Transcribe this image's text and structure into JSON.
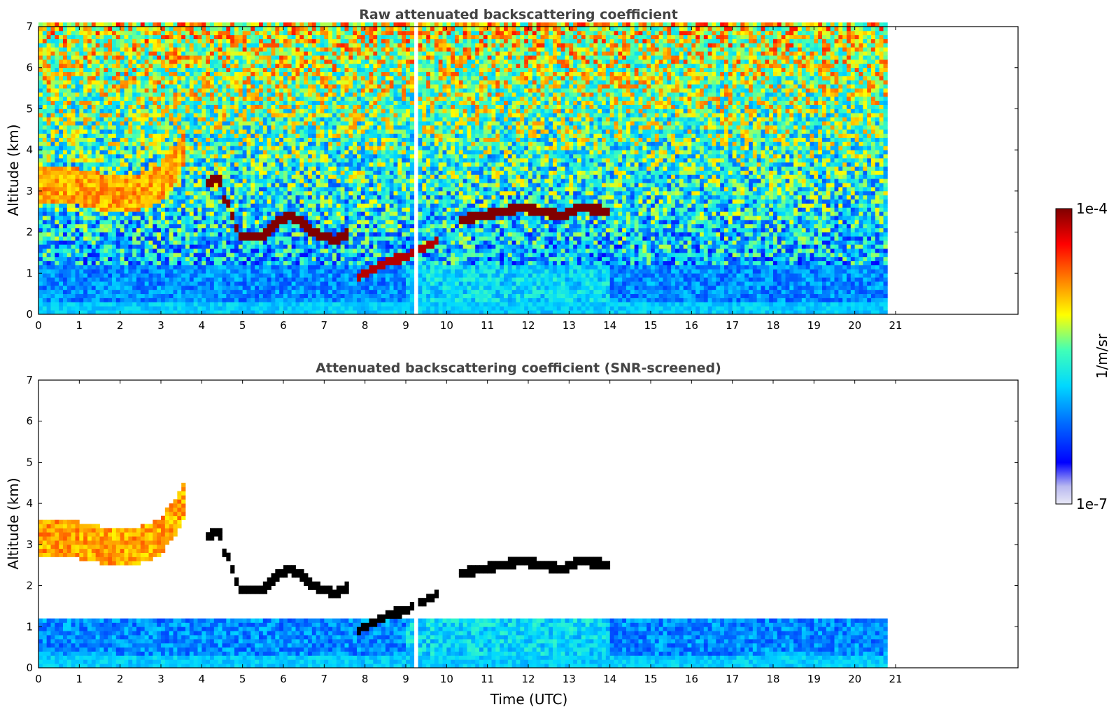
{
  "chart_data": [
    {
      "type": "heatmap",
      "title": "Raw attenuated backscattering coefficient",
      "xlabel": "",
      "ylabel": "Altitude (km)",
      "xlim": [
        0,
        24
      ],
      "ylim": [
        0,
        7
      ],
      "x_ticks": [
        "0",
        "1",
        "2",
        "3",
        "4",
        "5",
        "6",
        "7",
        "8",
        "9",
        "10",
        "11",
        "12",
        "13",
        "14",
        "15",
        "16",
        "17",
        "18",
        "19",
        "20",
        "21"
      ],
      "y_ticks": [
        "0",
        "1",
        "2",
        "3",
        "4",
        "5",
        "6",
        "7"
      ],
      "data_end_x": 20.8,
      "gap_x": [
        9.1,
        9.25
      ],
      "features": [
        {
          "kind": "layer",
          "x": [
            0,
            0.5,
            1,
            1.5,
            2,
            2.5,
            3,
            3.3,
            3.6
          ],
          "y": [
            3.1,
            3.2,
            3.1,
            3.0,
            2.9,
            3.0,
            3.2,
            3.6,
            4.1
          ],
          "level": 0.8
        },
        {
          "kind": "cloud",
          "x": [
            4.1,
            4.2,
            4.4,
            4.5
          ],
          "y": [
            3.2,
            3.25,
            3.3,
            3.2
          ],
          "level": 1.0
        },
        {
          "kind": "cloud",
          "x": [
            4.5,
            4.7,
            4.9,
            5.2,
            5.5,
            5.8,
            6.1,
            6.4,
            6.7,
            7.0,
            7.3,
            7.6
          ],
          "y": [
            2.9,
            2.6,
            1.9,
            1.9,
            1.9,
            2.2,
            2.4,
            2.3,
            2.0,
            1.9,
            1.8,
            2.0
          ],
          "level": 1.0
        },
        {
          "kind": "cloud",
          "x": [
            7.8,
            8.2,
            8.6,
            9.0,
            9.4,
            9.8
          ],
          "y": [
            0.9,
            1.1,
            1.3,
            1.4,
            1.6,
            1.8
          ],
          "level": 0.95
        },
        {
          "kind": "cloud",
          "x": [
            10.3,
            10.8,
            11.3,
            11.8,
            12.3,
            12.8,
            13.3,
            14.0
          ],
          "y": [
            2.3,
            2.4,
            2.5,
            2.6,
            2.5,
            2.4,
            2.6,
            2.5
          ],
          "level": 1.0
        }
      ]
    },
    {
      "type": "heatmap",
      "title": "Attenuated backscattering coefficient (SNR-screened)",
      "xlabel": "Time (UTC)",
      "ylabel": "Altitude (km)",
      "xlim": [
        0,
        24
      ],
      "ylim": [
        0,
        7
      ],
      "x_ticks": [
        "0",
        "1",
        "2",
        "3",
        "4",
        "5",
        "6",
        "7",
        "8",
        "9",
        "10",
        "11",
        "12",
        "13",
        "14",
        "15",
        "16",
        "17",
        "18",
        "19",
        "20",
        "21"
      ],
      "y_ticks": [
        "0",
        "1",
        "2",
        "3",
        "4",
        "5",
        "6",
        "7"
      ],
      "data_end_x": 20.8,
      "gap_x": [
        9.1,
        9.25
      ]
    }
  ],
  "colorbar": {
    "label": "1/m/sr",
    "max_label": "1e-4",
    "min_label": "1e-7",
    "colors": [
      "#e8e8f6",
      "#b8b8f0",
      "#0000ff",
      "#0070ff",
      "#00d8ff",
      "#40ffb8",
      "#ffff00",
      "#ff8000",
      "#ff0000",
      "#800000"
    ]
  }
}
